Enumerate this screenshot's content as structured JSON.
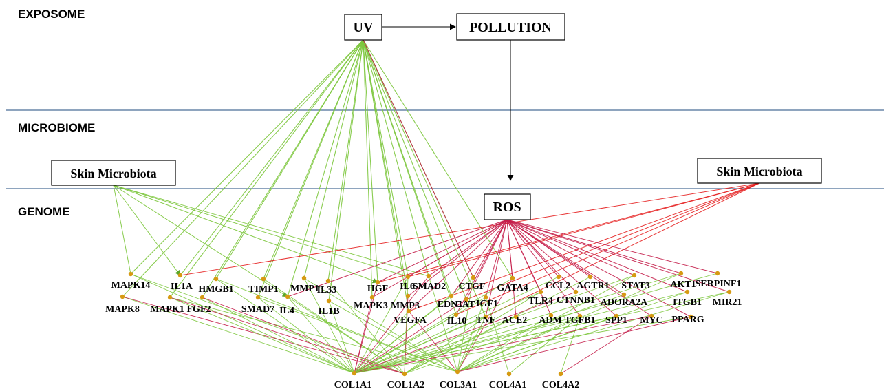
{
  "colors": {
    "uv_edge": "#7cc63c",
    "microbiota_edge": "#7cc63c",
    "ros_edge": "#c41e4a",
    "microbiota_ros_edge": "#e52222",
    "layer_line": "#4a6d96",
    "node_fill": "#d69a12"
  },
  "layers": {
    "exposome": "EXPOSOME",
    "microbiome": "MICROBIOME",
    "genome": "GENOME"
  },
  "boxes": {
    "uv": "UV",
    "pollution": "POLLUTION",
    "skin_microbiota_left": "Skin Microbiota",
    "skin_microbiota_right": "Skin Microbiota",
    "ros": "ROS"
  },
  "genes": {
    "MAPK14": "MAPK14",
    "IL1A": "IL1A",
    "HMGB1": "HMGB1",
    "TIMP1": "TIMP1",
    "MMP1": "MMP1",
    "IL33": "IL33",
    "HGF": "HGF",
    "IL6": "IL6",
    "SMAD2": "SMAD2",
    "CTGF": "CTGF",
    "GATA4": "GATA4",
    "CCL2": "CCL2",
    "AGTR1": "AGTR1",
    "STAT3": "STAT3",
    "AKT1": "AKT1",
    "SERPINF1": "SERPINF1",
    "MAPK8": "MAPK8",
    "MAPK1": "MAPK1",
    "FGF2": "FGF2",
    "SMAD7": "SMAD7",
    "IL4": "IL4",
    "IL1B": "IL1B",
    "MAPK3": "MAPK3",
    "MMP3": "MMP3",
    "EDN1": "EDN1",
    "CAT": "CAT",
    "IGF1": "IGF1",
    "TLR4": "TLR4",
    "CTNNB1": "CTNNB1",
    "ADORA2A": "ADORA2A",
    "ITGB1": "ITGB1",
    "MIR21": "MIR21",
    "VEGFA": "VEGFA",
    "IL10": "IL10",
    "TNF": "TNF",
    "ACE2": "ACE2",
    "ADM": "ADM",
    "TGFB1": "TGFB1",
    "SPP1": "SPP1",
    "MYC": "MYC",
    "PPARG": "PPARG",
    "COL1A1": "COL1A1",
    "COL1A2": "COL1A2",
    "COL3A1": "COL3A1",
    "COL4A1": "COL4A1",
    "COL4A2": "COL4A2"
  }
}
